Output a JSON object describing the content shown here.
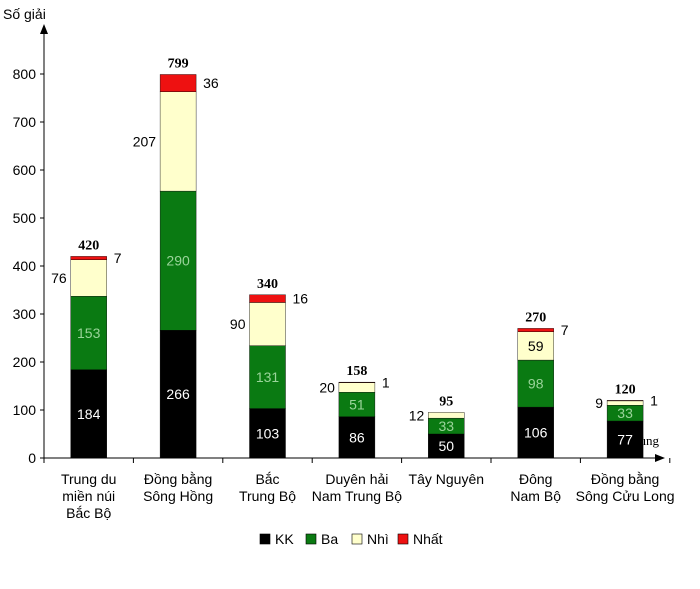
{
  "chart_data": {
    "type": "bar",
    "stacked": true,
    "ylabel": "Số giải",
    "xlabel": "Vùng",
    "ylim": [
      0,
      900
    ],
    "yticks": [
      0,
      100,
      200,
      300,
      400,
      500,
      600,
      700,
      800
    ],
    "grid": false,
    "legend_position": "bottom",
    "categories": [
      [
        "Trung du",
        "miền núi",
        "Bắc Bộ"
      ],
      [
        "Đồng bằng",
        "Sông Hồng"
      ],
      [
        "Bắc",
        "Trung Bộ"
      ],
      [
        "Duyên hải",
        "Nam Trung Bộ"
      ],
      [
        "Tây Nguyên"
      ],
      [
        "Đông",
        "Nam Bộ"
      ],
      [
        "Đồng bằng",
        "Sông Cửu Long"
      ]
    ],
    "series": [
      {
        "name": "KK",
        "color": "#000000",
        "values": [
          184,
          266,
          103,
          86,
          50,
          106,
          77
        ]
      },
      {
        "name": "Ba",
        "color": "#0a7a12",
        "values": [
          153,
          290,
          131,
          51,
          33,
          98,
          33
        ]
      },
      {
        "name": "Nhì",
        "color": "#ffffcc",
        "values": [
          76,
          207,
          90,
          20,
          12,
          59,
          9
        ]
      },
      {
        "name": "Nhất",
        "color": "#ee1111",
        "values": [
          7,
          36,
          16,
          1,
          0,
          7,
          1
        ]
      }
    ],
    "totals": [
      420,
      799,
      340,
      158,
      95,
      270,
      120
    ]
  }
}
